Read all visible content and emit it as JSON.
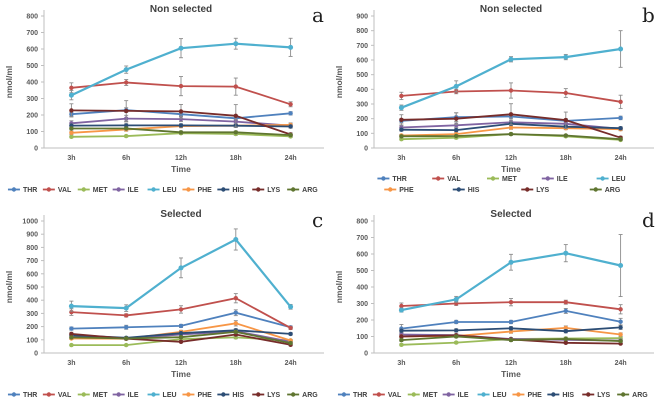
{
  "palette": {
    "THR": "#4F81BD",
    "VAL": "#C0504D",
    "MET": "#9BBB59",
    "ILE": "#8064A2",
    "LEU": "#4FB0CF",
    "PHE": "#F79646",
    "HIS": "#2C4D75",
    "LYS": "#772C2A",
    "ARG": "#5F7530"
  },
  "chart_data": [
    {
      "id": "a",
      "type": "line",
      "letter": "a",
      "title": "Non selected",
      "xlabel": "Time",
      "ylabel": "nmol/ml",
      "ylim": [
        0,
        800
      ],
      "yticks": [
        0,
        100,
        200,
        300,
        400,
        500,
        600,
        700,
        800
      ],
      "categories": [
        "3h",
        "6h",
        "12h",
        "18h",
        "24h"
      ],
      "legend_rows": [
        [
          "THR",
          "VAL",
          "MET",
          "ILE",
          "LEU",
          "PHE",
          "HIS",
          "LYS",
          "ARG"
        ]
      ],
      "series": [
        {
          "name": "THR",
          "values": [
            205,
            230,
            205,
            180,
            210
          ],
          "err": [
            12,
            14,
            12,
            12,
            10
          ]
        },
        {
          "name": "VAL",
          "values": [
            365,
            397,
            375,
            372,
            265
          ],
          "err": [
            30,
            18,
            58,
            52,
            15
          ]
        },
        {
          "name": "MET",
          "values": [
            68,
            72,
            90,
            85,
            70
          ],
          "err": [
            6,
            6,
            8,
            8,
            6
          ]
        },
        {
          "name": "ILE",
          "values": [
            150,
            178,
            175,
            160,
            135
          ],
          "err": [
            15,
            20,
            15,
            15,
            10
          ]
        },
        {
          "name": "LEU",
          "values": [
            320,
            475,
            605,
            632,
            610
          ],
          "err": [
            28,
            22,
            58,
            33,
            55
          ]
        },
        {
          "name": "PHE",
          "values": [
            92,
            112,
            133,
            135,
            140
          ],
          "err": [
            10,
            10,
            10,
            10,
            12
          ]
        },
        {
          "name": "HIS",
          "values": [
            136,
            137,
            137,
            135,
            130
          ],
          "err": [
            10,
            10,
            10,
            10,
            10
          ]
        },
        {
          "name": "LYS",
          "values": [
            228,
            225,
            222,
            195,
            82
          ],
          "err": [
            40,
            62,
            42,
            68,
            10
          ]
        },
        {
          "name": "ARG",
          "values": [
            118,
            118,
            95,
            95,
            78
          ],
          "err": [
            8,
            8,
            8,
            8,
            8
          ]
        }
      ]
    },
    {
      "id": "b",
      "type": "line",
      "letter": "b",
      "title": "Non selected",
      "xlabel": "Time",
      "ylabel": "nmol/ml",
      "ylim": [
        0,
        900
      ],
      "yticks": [
        0,
        100,
        200,
        300,
        400,
        500,
        600,
        700,
        800,
        900
      ],
      "categories": [
        "3h",
        "6h",
        "12h",
        "18h",
        "24h"
      ],
      "legend_rows": [
        [
          "THR",
          "VAL",
          "MET",
          "ILE",
          "LEU"
        ],
        [
          "PHE",
          "HIS",
          "LYS",
          "ARG"
        ]
      ],
      "series": [
        {
          "name": "THR",
          "values": [
            185,
            210,
            215,
            185,
            205
          ],
          "err": [
            15,
            30,
            15,
            15,
            12
          ]
        },
        {
          "name": "VAL",
          "values": [
            355,
            385,
            392,
            375,
            315
          ],
          "err": [
            25,
            15,
            52,
            30,
            45
          ]
        },
        {
          "name": "MET",
          "values": [
            60,
            70,
            95,
            80,
            55
          ],
          "err": [
            6,
            8,
            8,
            8,
            6
          ]
        },
        {
          "name": "ILE",
          "values": [
            140,
            155,
            175,
            165,
            130
          ],
          "err": [
            12,
            15,
            15,
            12,
            10
          ]
        },
        {
          "name": "LEU",
          "values": [
            275,
            420,
            605,
            620,
            675
          ],
          "err": [
            18,
            38,
            18,
            18,
            125
          ]
        },
        {
          "name": "PHE",
          "values": [
            85,
            95,
            140,
            135,
            128
          ],
          "err": [
            8,
            10,
            12,
            10,
            10
          ]
        },
        {
          "name": "HIS",
          "values": [
            125,
            122,
            165,
            145,
            135
          ],
          "err": [
            10,
            10,
            12,
            10,
            10
          ]
        },
        {
          "name": "LYS",
          "values": [
            192,
            200,
            230,
            190,
            70
          ],
          "err": [
            35,
            40,
            72,
            55,
            10
          ]
        },
        {
          "name": "ARG",
          "values": [
            80,
            82,
            95,
            85,
            60
          ],
          "err": [
            8,
            8,
            8,
            8,
            8
          ]
        }
      ]
    },
    {
      "id": "c",
      "type": "line",
      "letter": "c",
      "title": "Selected",
      "xlabel": "Time",
      "ylabel": "nmol/ml",
      "ylim": [
        0,
        1000
      ],
      "yticks": [
        0,
        100,
        200,
        300,
        400,
        500,
        600,
        700,
        800,
        900,
        1000
      ],
      "categories": [
        "3h",
        "6h",
        "12h",
        "18h",
        "24h"
      ],
      "legend_rows": [
        [
          "THR",
          "VAL",
          "MET",
          "ILE",
          "LEU",
          "PHE",
          "HIS",
          "LYS",
          "ARG"
        ]
      ],
      "series": [
        {
          "name": "THR",
          "values": [
            185,
            195,
            205,
            305,
            195
          ],
          "err": [
            12,
            15,
            12,
            22,
            10
          ]
        },
        {
          "name": "VAL",
          "values": [
            310,
            285,
            330,
            415,
            190
          ],
          "err": [
            25,
            12,
            28,
            35,
            12
          ]
        },
        {
          "name": "MET",
          "values": [
            60,
            60,
            105,
            118,
            95
          ],
          "err": [
            6,
            6,
            8,
            10,
            8
          ]
        },
        {
          "name": "ILE",
          "values": [
            130,
            110,
            140,
            165,
            85
          ],
          "err": [
            10,
            10,
            10,
            12,
            8
          ]
        },
        {
          "name": "LEU",
          "values": [
            355,
            340,
            645,
            860,
            350
          ],
          "err": [
            38,
            25,
            75,
            80,
            18
          ]
        },
        {
          "name": "PHE",
          "values": [
            110,
            108,
            160,
            225,
            95
          ],
          "err": [
            8,
            8,
            12,
            20,
            8
          ]
        },
        {
          "name": "HIS",
          "values": [
            135,
            115,
            150,
            172,
            145
          ],
          "err": [
            10,
            8,
            10,
            12,
            10
          ]
        },
        {
          "name": "LYS",
          "values": [
            145,
            108,
            85,
            140,
            62
          ],
          "err": [
            12,
            10,
            8,
            12,
            8
          ]
        },
        {
          "name": "ARG",
          "values": [
            118,
            110,
            120,
            160,
            75
          ],
          "err": [
            8,
            8,
            8,
            12,
            8
          ]
        }
      ]
    },
    {
      "id": "d",
      "type": "line",
      "letter": "d",
      "title": "Selected",
      "xlabel": "Time",
      "ylabel": "nmol/ml",
      "ylim": [
        0,
        800
      ],
      "yticks": [
        0,
        100,
        200,
        300,
        400,
        500,
        600,
        700,
        800
      ],
      "categories": [
        "3h",
        "6h",
        "12h",
        "18h",
        "24h"
      ],
      "legend_rows": [
        [
          "THR",
          "VAL",
          "MET",
          "ILE",
          "LEU",
          "PHE",
          "HIS",
          "LYS",
          "ARG"
        ]
      ],
      "series": [
        {
          "name": "THR",
          "values": [
            148,
            188,
            188,
            255,
            190
          ],
          "err": [
            25,
            10,
            10,
            15,
            20
          ]
        },
        {
          "name": "VAL",
          "values": [
            285,
            300,
            308,
            308,
            265
          ],
          "err": [
            18,
            12,
            22,
            12,
            28
          ]
        },
        {
          "name": "MET",
          "values": [
            50,
            63,
            85,
            88,
            90
          ],
          "err": [
            6,
            6,
            8,
            8,
            8
          ]
        },
        {
          "name": "ILE",
          "values": [
            112,
            108,
            85,
            80,
            75
          ],
          "err": [
            8,
            8,
            8,
            8,
            8
          ]
        },
        {
          "name": "LEU",
          "values": [
            260,
            325,
            550,
            605,
            530
          ],
          "err": [
            12,
            18,
            48,
            52,
            188
          ]
        },
        {
          "name": "PHE",
          "values": [
            100,
            103,
            130,
            152,
            112
          ],
          "err": [
            8,
            8,
            10,
            12,
            10
          ]
        },
        {
          "name": "HIS",
          "values": [
            135,
            137,
            150,
            132,
            155
          ],
          "err": [
            10,
            10,
            10,
            10,
            12
          ]
        },
        {
          "name": "LYS",
          "values": [
            100,
            107,
            82,
            62,
            57
          ],
          "err": [
            8,
            8,
            8,
            6,
            6
          ]
        },
        {
          "name": "ARG",
          "values": [
            78,
            100,
            78,
            85,
            72
          ],
          "err": [
            8,
            8,
            8,
            8,
            8
          ]
        }
      ]
    }
  ]
}
